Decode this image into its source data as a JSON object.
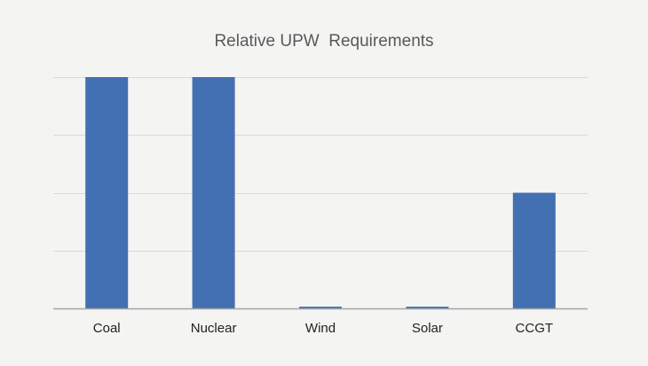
{
  "chart_data": {
    "type": "bar",
    "title": "Relative UPW  Requirements",
    "categories": [
      "Coal",
      "Nuclear",
      "Wind",
      "Solar",
      "CCGT"
    ],
    "values": [
      4,
      4,
      0.03,
      0.03,
      2
    ],
    "ylim": [
      0,
      4
    ],
    "y_gridlines": [
      0,
      1,
      2,
      3,
      4
    ],
    "y_tick_labels_shown": false,
    "grid": true,
    "legend": "none",
    "bar_color": "#4270b3",
    "grid_color": "#d9d9d9",
    "axis_color": "#a6a6a6"
  }
}
